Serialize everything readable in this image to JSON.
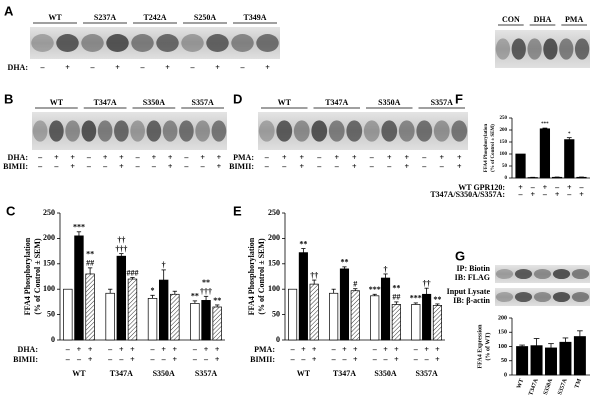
{
  "panel_labels": [
    "A",
    "B",
    "C",
    "D",
    "E",
    "F",
    "G"
  ],
  "blots": [
    {
      "groups": [
        "WT",
        "S237A",
        "T242A",
        "S250A",
        "T349A"
      ],
      "rows": [
        {
          "label": "DHA:",
          "signs": [
            "–",
            "+",
            "–",
            "+",
            "–",
            "+",
            "–",
            "+",
            "–",
            "+"
          ]
        }
      ]
    },
    {
      "groups": [
        "WT",
        "T347A",
        "S350A",
        "S357A"
      ],
      "rows": [
        {
          "label": "DHA:",
          "signs": [
            "–",
            "+",
            "+",
            "–",
            "+",
            "+",
            "–",
            "+",
            "+",
            "–",
            "+",
            "+"
          ]
        },
        {
          "label": "BIMII:",
          "signs": [
            "–",
            "–",
            "+",
            "–",
            "–",
            "+",
            "–",
            "–",
            "+",
            "–",
            "–",
            "+"
          ]
        }
      ]
    },
    {
      "groups": [
        "WT",
        "T347A",
        "S350A",
        "S357A"
      ],
      "rows": [
        {
          "label": "PMA:",
          "signs": [
            "–",
            "+",
            "+",
            "–",
            "+",
            "+",
            "–",
            "+",
            "+",
            "–",
            "+",
            "+"
          ]
        },
        {
          "label": "BIMII:",
          "signs": [
            "–",
            "–",
            "+",
            "–",
            "–",
            "+",
            "–",
            "–",
            "+",
            "–",
            "–",
            "+"
          ]
        }
      ]
    },
    {
      "groups": [
        "CON",
        "DHA",
        "PMA"
      ],
      "rows": []
    },
    {
      "labels": [
        [
          "IP: Biotin",
          "IB: FLAG"
        ],
        [
          "Input Lysate",
          "IB: β-actin"
        ]
      ]
    }
  ],
  "chart_data": [
    {
      "type": "bar",
      "y_label": [
        "FFA4 Phosphorylation",
        "(% of Control ± SEM)"
      ],
      "groups": [
        "WT",
        "T347A",
        "S350A",
        "S357A"
      ],
      "values": [
        100,
        205,
        130,
        92,
        165,
        120,
        82,
        118,
        90,
        72,
        78,
        65
      ],
      "errors": [
        0,
        8,
        12,
        8,
        5,
        3,
        6,
        20,
        6,
        5,
        8,
        4
      ],
      "bar_fills": [
        "white",
        "black",
        "hatched",
        "white",
        "black",
        "hatched",
        "white",
        "black",
        "hatched",
        "white",
        "black",
        "hatched"
      ],
      "annotations": [
        [],
        [
          "***"
        ],
        [
          "##",
          "**"
        ],
        [],
        [
          "†††",
          "††"
        ],
        [
          "###"
        ],
        [
          "*"
        ],
        [
          "†"
        ],
        [],
        [
          "**"
        ],
        [
          "†††",
          "**"
        ],
        [
          "**"
        ]
      ],
      "sign_rows": [
        {
          "label": "DHA:",
          "signs": [
            "–",
            "+",
            "+",
            "–",
            "+",
            "+",
            "–",
            "+",
            "+",
            "–",
            "+",
            "+"
          ]
        },
        {
          "label": "BIMII:",
          "signs": [
            "–",
            "–",
            "+",
            "–",
            "–",
            "+",
            "–",
            "–",
            "+",
            "–",
            "–",
            "+"
          ]
        }
      ],
      "ylim": [
        0,
        250
      ],
      "yticks": [
        0,
        50,
        100,
        150,
        200,
        250
      ]
    },
    {
      "type": "bar",
      "y_label": [
        "FFA4 Phosphorylation",
        "(% of Control ± SEM)"
      ],
      "groups": [
        "WT",
        "T347A",
        "S350A",
        "S357A"
      ],
      "values": [
        100,
        172,
        110,
        92,
        140,
        97,
        87,
        122,
        70,
        70,
        90,
        68
      ],
      "errors": [
        0,
        8,
        8,
        8,
        4,
        4,
        3,
        8,
        5,
        3,
        12,
        3
      ],
      "bar_fills": [
        "white",
        "black",
        "hatched",
        "white",
        "black",
        "hatched",
        "white",
        "black",
        "hatched",
        "white",
        "black",
        "hatched"
      ],
      "annotations": [
        [],
        [
          "**"
        ],
        [
          "††"
        ],
        [],
        [
          "**"
        ],
        [
          "#"
        ],
        [
          "***"
        ],
        [
          "†"
        ],
        [
          "##",
          "**"
        ],
        [
          "***"
        ],
        [
          "††"
        ],
        [
          "**"
        ]
      ],
      "sign_rows": [
        {
          "label": "PMA:",
          "signs": [
            "–",
            "+",
            "+",
            "–",
            "+",
            "+",
            "–",
            "+",
            "+",
            "–",
            "+",
            "+"
          ]
        },
        {
          "label": "BIMII:",
          "signs": [
            "–",
            "–",
            "+",
            "–",
            "–",
            "+",
            "–",
            "–",
            "+",
            "–",
            "–",
            "+"
          ]
        }
      ],
      "ylim": [
        0,
        250
      ],
      "yticks": [
        0,
        50,
        100,
        150,
        200,
        250
      ]
    },
    {
      "type": "bar",
      "y_label": [
        "FFA4 Phosphorylation",
        "(% of Control ± SEM)"
      ],
      "values": [
        100,
        2,
        205,
        3,
        160,
        3
      ],
      "errors": [
        0,
        1,
        3,
        1,
        8,
        1
      ],
      "color": "#000000",
      "annotations": [
        [],
        [],
        [
          "***"
        ],
        [],
        [
          "*"
        ],
        []
      ],
      "sign_rows": [
        {
          "label": "WT GPR120:",
          "signs": [
            "+",
            "–",
            "+",
            "–",
            "+",
            "–"
          ]
        },
        {
          "label": "T347A/S350A/S357A:",
          "signs": [
            "–",
            "+",
            "–",
            "+",
            "–",
            "+"
          ]
        }
      ],
      "ylim": [
        0,
        250
      ],
      "yticks": [
        0,
        50,
        100,
        150,
        200,
        250
      ]
    },
    {
      "type": "bar",
      "y_label": [
        "FFA4 Expression",
        "(% of WT)"
      ],
      "categories": [
        "WT",
        "T347A",
        "S350A",
        "S357A",
        "TM"
      ],
      "values": [
        100,
        103,
        95,
        115,
        135
      ],
      "errors": [
        5,
        25,
        15,
        15,
        20
      ],
      "color": "#000000",
      "ylim": [
        0,
        200
      ],
      "yticks": [
        0,
        50,
        100,
        150,
        200
      ]
    }
  ]
}
